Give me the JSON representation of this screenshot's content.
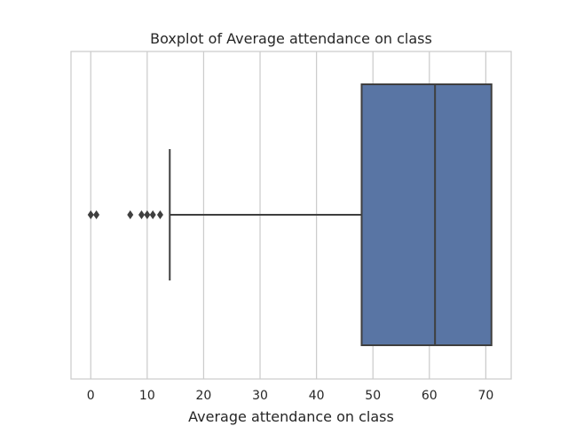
{
  "chart_data": {
    "type": "boxplot",
    "title": "Boxplot of Average attendance on class",
    "xlabel": "Average attendance on class",
    "ylabel": "",
    "xlim": [
      -3.5,
      74.5
    ],
    "xticks": [
      0,
      10,
      20,
      30,
      40,
      50,
      60,
      70
    ],
    "grid": true,
    "box": {
      "whisker_low": 14,
      "q1": 48,
      "median": 61,
      "q3": 71,
      "whisker_high": 71,
      "outliers": [
        0,
        1,
        7,
        9,
        10,
        11,
        12.3
      ]
    },
    "colors": {
      "box_fill": "#5975a4",
      "line": "#3f3f3f",
      "grid": "#cccccc",
      "spine": "#cccccc"
    }
  }
}
